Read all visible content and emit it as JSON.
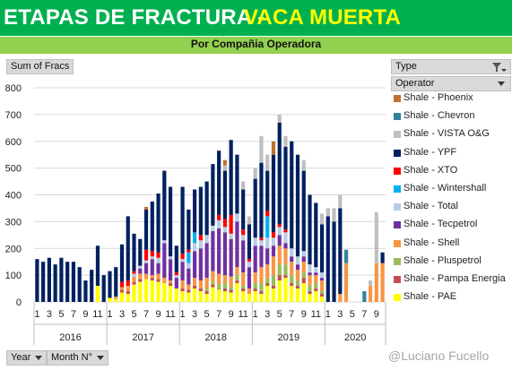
{
  "header": {
    "title_part1": "ETAPAS DE FRACTURA -",
    "title_part2": "VACA MUERTA",
    "subtitle": "Por Compañia Operadora"
  },
  "pivot": {
    "value_field": "Sum of Fracs",
    "filter_type": "Type",
    "legend_field": "Operator",
    "axis_field_year": "Year",
    "axis_field_month": "Month N°"
  },
  "watermark": "@Luciano Fucello",
  "colors": {
    "Shale - PAE": "#ffff00",
    "Shale - Pampa Energia": "#c0504d",
    "Shale - Pluspetrol": "#9bbb59",
    "Shale - Shell": "#f79646",
    "Shale - Tecpetrol": "#7030a0",
    "Shale - Total": "#b8cce4",
    "Shale - Wintershall": "#00b0f0",
    "Shale - XTO": "#ff0000",
    "Shale - YPF": "#002060",
    "Shale - VISTA O&G": "#bfbfbf",
    "Shale - Chevron": "#31849b",
    "Shale - Phoenix": "#c0722b"
  },
  "chart_data": {
    "type": "bar",
    "stacked": true,
    "ylim": [
      0,
      800
    ],
    "yticks": [
      0,
      100,
      200,
      300,
      400,
      500,
      600,
      700,
      800
    ],
    "grid": true,
    "legend_position": "right",
    "years": [
      "2016",
      "2017",
      "2018",
      "2019",
      "2020"
    ],
    "month_labels_shown": [
      "1",
      "3",
      "5",
      "7",
      "9",
      "11"
    ],
    "categories": [
      "2016-1",
      "2016-2",
      "2016-3",
      "2016-4",
      "2016-5",
      "2016-6",
      "2016-7",
      "2016-8",
      "2016-9",
      "2016-10",
      "2016-11",
      "2016-12",
      "2017-1",
      "2017-2",
      "2017-3",
      "2017-4",
      "2017-5",
      "2017-6",
      "2017-7",
      "2017-8",
      "2017-9",
      "2017-10",
      "2017-11",
      "2017-12",
      "2018-1",
      "2018-2",
      "2018-3",
      "2018-4",
      "2018-5",
      "2018-6",
      "2018-7",
      "2018-8",
      "2018-9",
      "2018-10",
      "2018-11",
      "2018-12",
      "2019-1",
      "2019-2",
      "2019-3",
      "2019-4",
      "2019-5",
      "2019-6",
      "2019-7",
      "2019-8",
      "2019-9",
      "2019-10",
      "2019-11",
      "2019-12",
      "2020-1",
      "2020-2",
      "2020-3",
      "2020-4",
      "2020-5",
      "2020-6",
      "2020-7",
      "2020-8",
      "2020-9",
      "2020-10"
    ],
    "series": [
      {
        "name": "Shale - PAE",
        "values": [
          0,
          0,
          0,
          0,
          0,
          0,
          0,
          0,
          0,
          0,
          60,
          0,
          15,
          10,
          35,
          30,
          65,
          75,
          85,
          80,
          75,
          70,
          60,
          50,
          40,
          35,
          50,
          40,
          30,
          55,
          45,
          40,
          35,
          70,
          40,
          30,
          40,
          30,
          60,
          50,
          80,
          90,
          60,
          50,
          70,
          30,
          40,
          20,
          0,
          0,
          0,
          0,
          0,
          0,
          0,
          0,
          0,
          0
        ]
      },
      {
        "name": "Shale - Pampa Energia",
        "values": [
          0,
          0,
          0,
          0,
          0,
          0,
          0,
          0,
          0,
          0,
          0,
          0,
          0,
          0,
          10,
          10,
          10,
          10,
          0,
          10,
          10,
          0,
          10,
          0,
          10,
          10,
          10,
          10,
          10,
          10,
          0,
          10,
          10,
          10,
          10,
          0,
          10,
          10,
          10,
          10,
          20,
          10,
          10,
          10,
          20,
          10,
          10,
          10,
          0,
          0,
          0,
          0,
          0,
          0,
          0,
          0,
          0,
          0
        ]
      },
      {
        "name": "Shale - Pluspetrol",
        "values": [
          0,
          0,
          0,
          0,
          0,
          0,
          0,
          0,
          0,
          0,
          0,
          0,
          0,
          0,
          0,
          0,
          0,
          0,
          0,
          0,
          0,
          0,
          0,
          0,
          0,
          0,
          0,
          0,
          10,
          10,
          20,
          20,
          10,
          20,
          10,
          0,
          20,
          30,
          20,
          40,
          40,
          40,
          30,
          20,
          20,
          20,
          20,
          10,
          0,
          0,
          0,
          0,
          0,
          0,
          0,
          0,
          0,
          0
        ]
      },
      {
        "name": "Shale - Shell",
        "values": [
          0,
          0,
          0,
          0,
          0,
          0,
          0,
          0,
          0,
          0,
          0,
          0,
          0,
          10,
          10,
          20,
          20,
          20,
          20,
          10,
          20,
          20,
          10,
          0,
          30,
          20,
          30,
          30,
          40,
          40,
          40,
          30,
          40,
          30,
          50,
          20,
          40,
          60,
          50,
          70,
          70,
          60,
          50,
          40,
          40,
          40,
          30,
          40,
          0,
          0,
          30,
          145,
          0,
          0,
          0,
          60,
          145,
          145
        ]
      },
      {
        "name": "Shale - Tecpetrol",
        "values": [
          0,
          0,
          0,
          0,
          0,
          0,
          0,
          0,
          0,
          0,
          0,
          0,
          0,
          0,
          0,
          0,
          0,
          20,
          40,
          60,
          40,
          130,
          80,
          40,
          70,
          60,
          100,
          120,
          130,
          150,
          170,
          160,
          140,
          170,
          120,
          80,
          100,
          80,
          60,
          40,
          40,
          20,
          20,
          20,
          20,
          10,
          10,
          10,
          0,
          0,
          0,
          0,
          0,
          0,
          0,
          0,
          0,
          0
        ]
      },
      {
        "name": "Shale - Total",
        "values": [
          0,
          0,
          0,
          0,
          0,
          0,
          0,
          0,
          0,
          0,
          0,
          0,
          0,
          0,
          0,
          0,
          10,
          10,
          10,
          10,
          20,
          10,
          10,
          10,
          10,
          20,
          30,
          30,
          30,
          20,
          30,
          20,
          20,
          30,
          20,
          20,
          30,
          20,
          40,
          30,
          30,
          40,
          30,
          30,
          20,
          30,
          20,
          20,
          0,
          0,
          0,
          0,
          0,
          0,
          0,
          0,
          0,
          0
        ]
      },
      {
        "name": "Shale - Wintershall",
        "values": [
          0,
          0,
          0,
          0,
          0,
          0,
          0,
          0,
          0,
          0,
          0,
          0,
          0,
          0,
          0,
          0,
          0,
          0,
          0,
          0,
          0,
          0,
          0,
          0,
          0,
          40,
          40,
          0,
          0,
          0,
          0,
          0,
          0,
          0,
          0,
          0,
          0,
          0,
          80,
          0,
          0,
          0,
          0,
          0,
          0,
          0,
          0,
          0,
          0,
          0,
          0,
          0,
          0,
          0,
          0,
          0,
          0,
          0
        ]
      },
      {
        "name": "Shale - XTO",
        "values": [
          0,
          0,
          0,
          0,
          0,
          0,
          0,
          0,
          0,
          0,
          0,
          0,
          0,
          0,
          20,
          20,
          10,
          0,
          40,
          20,
          20,
          0,
          0,
          10,
          20,
          10,
          0,
          20,
          0,
          0,
          20,
          30,
          70,
          0,
          20,
          10,
          0,
          10,
          20,
          20,
          10,
          10,
          0,
          0,
          0,
          0,
          0,
          0,
          0,
          0,
          0,
          0,
          0,
          0,
          0,
          0,
          0,
          0
        ]
      },
      {
        "name": "Shale - YPF",
        "values": [
          160,
          150,
          165,
          140,
          165,
          150,
          150,
          130,
          80,
          120,
          150,
          100,
          100,
          110,
          140,
          240,
          140,
          100,
          150,
          185,
          220,
          260,
          260,
          100,
          250,
          150,
          160,
          180,
          200,
          230,
          240,
          180,
          280,
          220,
          150,
          130,
          220,
          280,
          150,
          290,
          380,
          310,
          400,
          380,
          300,
          260,
          240,
          180,
          320,
          300,
          320,
          0,
          0,
          0,
          0,
          0,
          0,
          40
        ]
      },
      {
        "name": "Shale - VISTA O&G",
        "values": [
          0,
          0,
          0,
          0,
          0,
          0,
          0,
          0,
          0,
          0,
          0,
          0,
          0,
          0,
          0,
          0,
          0,
          0,
          0,
          0,
          0,
          0,
          0,
          0,
          0,
          0,
          0,
          0,
          0,
          0,
          0,
          20,
          0,
          0,
          30,
          30,
          40,
          100,
          60,
          0,
          30,
          40,
          0,
          0,
          40,
          0,
          0,
          40,
          30,
          50,
          50,
          0,
          0,
          0,
          0,
          20,
          190,
          0
        ]
      },
      {
        "name": "Shale - Chevron",
        "values": [
          0,
          0,
          0,
          0,
          0,
          0,
          0,
          0,
          0,
          0,
          0,
          0,
          0,
          0,
          0,
          0,
          0,
          0,
          0,
          0,
          0,
          0,
          0,
          0,
          0,
          0,
          0,
          0,
          0,
          0,
          0,
          0,
          0,
          0,
          0,
          0,
          0,
          0,
          0,
          0,
          0,
          0,
          0,
          0,
          0,
          0,
          0,
          0,
          0,
          0,
          0,
          50,
          0,
          0,
          40,
          0,
          0,
          0
        ]
      },
      {
        "name": "Shale - Phoenix",
        "values": [
          0,
          0,
          0,
          0,
          0,
          0,
          0,
          0,
          0,
          0,
          0,
          0,
          0,
          0,
          0,
          0,
          0,
          0,
          10,
          0,
          0,
          0,
          0,
          0,
          0,
          0,
          0,
          0,
          0,
          0,
          0,
          20,
          0,
          0,
          0,
          0,
          0,
          0,
          0,
          50,
          0,
          0,
          0,
          0,
          0,
          0,
          0,
          0,
          0,
          0,
          0,
          0,
          0,
          0,
          0,
          0,
          0,
          0
        ]
      }
    ]
  }
}
